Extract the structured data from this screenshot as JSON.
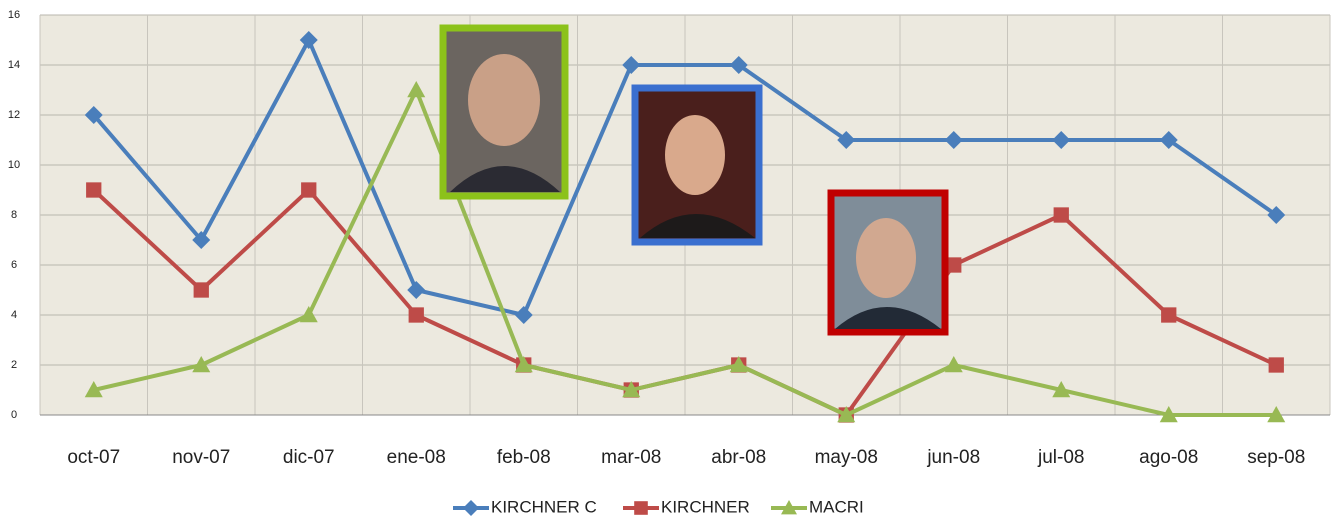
{
  "chart_data": {
    "type": "line",
    "categories": [
      "oct-07",
      "nov-07",
      "dic-07",
      "ene-08",
      "feb-08",
      "mar-08",
      "abr-08",
      "may-08",
      "jun-08",
      "jul-08",
      "ago-08",
      "sep-08"
    ],
    "series": [
      {
        "name": "KIRCHNER C",
        "color": "#4a7ebb",
        "marker": "diamond",
        "values": [
          12,
          7,
          15,
          5,
          4,
          14,
          14,
          11,
          11,
          11,
          11,
          8
        ]
      },
      {
        "name": "KIRCHNER",
        "color": "#be4b48",
        "marker": "square",
        "values": [
          9,
          5,
          9,
          4,
          2,
          1,
          2,
          0,
          6,
          8,
          4,
          2
        ]
      },
      {
        "name": "MACRI",
        "color": "#98b954",
        "marker": "triangle",
        "values": [
          1,
          2,
          4,
          13,
          2,
          1,
          2,
          0,
          2,
          1,
          0,
          0
        ]
      }
    ],
    "ylim": [
      0,
      16
    ],
    "yticks": [
      0,
      2,
      4,
      6,
      8,
      10,
      12,
      14,
      16
    ],
    "grid": true,
    "legend": "bottom"
  }
}
